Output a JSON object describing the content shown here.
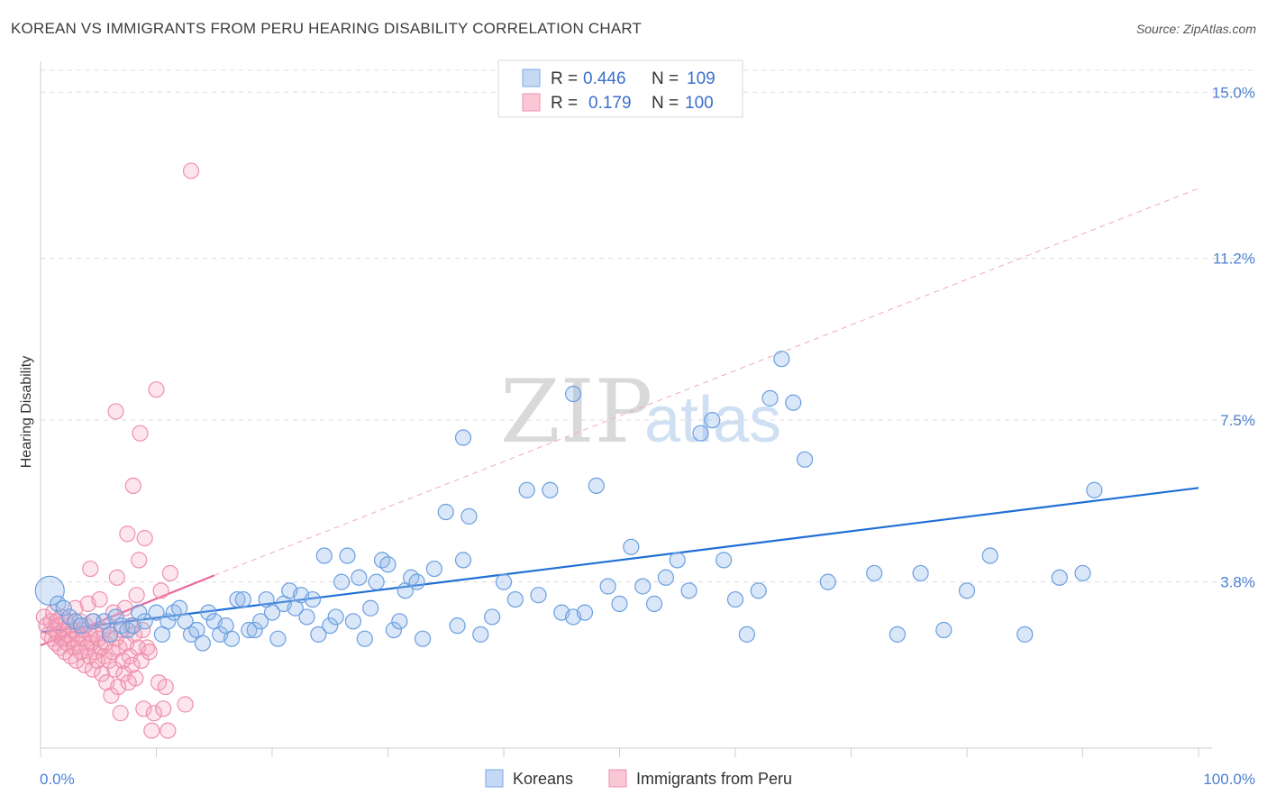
{
  "header": {
    "title": "KOREAN VS IMMIGRANTS FROM PERU HEARING DISABILITY CORRELATION CHART",
    "source": "Source: ZipAtlas.com"
  },
  "watermark": {
    "zip": "ZIP",
    "atlas": "atlas"
  },
  "colors": {
    "blue": "#6a9fe0",
    "blue_line": "#1f6fd6",
    "pink": "#f07ea0",
    "pink_line": "#e8679a",
    "axis_text": "#4a7fd4"
  },
  "legend": {
    "r_label": "R =",
    "n_label": "N =",
    "series": [
      {
        "name": "Koreans",
        "r": "0.446",
        "n": "109"
      },
      {
        "name": "Immigrants from Peru",
        "r": "0.179",
        "n": "100"
      }
    ]
  },
  "chart_data": {
    "type": "scatter",
    "title": "KOREAN VS IMMIGRANTS FROM PERU HEARING DISABILITY CORRELATION CHART",
    "xlabel": "",
    "ylabel": "Hearing Disability",
    "xlim": [
      0,
      100
    ],
    "ylim": [
      0,
      15.5
    ],
    "x_tick_labels": [
      "0.0%",
      "100.0%"
    ],
    "y_ticks": [
      3.8,
      7.5,
      11.2,
      15.0
    ],
    "y_tick_labels": [
      "3.8%",
      "7.5%",
      "11.2%",
      "15.0%"
    ],
    "series": [
      {
        "name": "Koreans",
        "trend": {
          "x0": 0,
          "y0": 2.65,
          "x1": 100,
          "y1": 5.95
        },
        "points": [
          [
            0.8,
            3.6
          ],
          [
            1.5,
            3.3
          ],
          [
            2.0,
            3.2
          ],
          [
            2.5,
            3.0
          ],
          [
            3.0,
            2.9
          ],
          [
            3.5,
            2.8
          ],
          [
            4.5,
            2.9
          ],
          [
            5.5,
            2.9
          ],
          [
            6.0,
            2.6
          ],
          [
            6.5,
            3.0
          ],
          [
            7.0,
            2.8
          ],
          [
            7.5,
            2.7
          ],
          [
            8.0,
            2.8
          ],
          [
            8.5,
            3.1
          ],
          [
            9.0,
            2.9
          ],
          [
            10.0,
            3.1
          ],
          [
            10.5,
            2.6
          ],
          [
            11.0,
            2.9
          ],
          [
            11.5,
            3.1
          ],
          [
            12.0,
            3.2
          ],
          [
            12.5,
            2.9
          ],
          [
            13.0,
            2.6
          ],
          [
            13.5,
            2.7
          ],
          [
            14.0,
            2.4
          ],
          [
            14.5,
            3.1
          ],
          [
            15.0,
            2.9
          ],
          [
            15.5,
            2.6
          ],
          [
            16.0,
            2.8
          ],
          [
            16.5,
            2.5
          ],
          [
            17.0,
            3.4
          ],
          [
            17.5,
            3.4
          ],
          [
            18.0,
            2.7
          ],
          [
            18.5,
            2.7
          ],
          [
            19.0,
            2.9
          ],
          [
            19.5,
            3.4
          ],
          [
            20.0,
            3.1
          ],
          [
            20.5,
            2.5
          ],
          [
            21.0,
            3.3
          ],
          [
            21.5,
            3.6
          ],
          [
            22.0,
            3.2
          ],
          [
            22.5,
            3.5
          ],
          [
            23.0,
            3.0
          ],
          [
            23.5,
            3.4
          ],
          [
            24.0,
            2.6
          ],
          [
            24.5,
            4.4
          ],
          [
            25.0,
            2.8
          ],
          [
            25.5,
            3.0
          ],
          [
            26.0,
            3.8
          ],
          [
            26.5,
            4.4
          ],
          [
            27.0,
            2.9
          ],
          [
            27.5,
            3.9
          ],
          [
            28.0,
            2.5
          ],
          [
            28.5,
            3.2
          ],
          [
            29.0,
            3.8
          ],
          [
            29.5,
            4.3
          ],
          [
            30.0,
            4.2
          ],
          [
            30.5,
            2.7
          ],
          [
            31.0,
            2.9
          ],
          [
            31.5,
            3.6
          ],
          [
            32.0,
            3.9
          ],
          [
            32.5,
            3.8
          ],
          [
            33.0,
            2.5
          ],
          [
            34.0,
            4.1
          ],
          [
            35.0,
            5.4
          ],
          [
            36.0,
            2.8
          ],
          [
            36.5,
            4.3
          ],
          [
            37.0,
            5.3
          ],
          [
            38.0,
            2.6
          ],
          [
            39.0,
            3.0
          ],
          [
            40.0,
            3.8
          ],
          [
            41.0,
            3.4
          ],
          [
            42.0,
            5.9
          ],
          [
            43.0,
            3.5
          ],
          [
            44.0,
            5.9
          ],
          [
            45.0,
            3.1
          ],
          [
            46.0,
            3.0
          ],
          [
            47.0,
            3.1
          ],
          [
            48.0,
            6.0
          ],
          [
            49.0,
            3.7
          ],
          [
            50.0,
            3.3
          ],
          [
            51.0,
            4.6
          ],
          [
            52.0,
            3.7
          ],
          [
            53.0,
            3.3
          ],
          [
            54.0,
            3.9
          ],
          [
            55.0,
            4.3
          ],
          [
            56.0,
            3.6
          ],
          [
            57.0,
            7.2
          ],
          [
            58.0,
            7.5
          ],
          [
            59.0,
            4.3
          ],
          [
            60.0,
            3.4
          ],
          [
            61.0,
            2.6
          ],
          [
            62.0,
            3.6
          ],
          [
            63.0,
            8.0
          ],
          [
            64.0,
            8.9
          ],
          [
            65.0,
            7.9
          ],
          [
            66.0,
            6.6
          ],
          [
            68.0,
            3.8
          ],
          [
            72.0,
            4.0
          ],
          [
            74.0,
            2.6
          ],
          [
            76.0,
            4.0
          ],
          [
            78.0,
            2.7
          ],
          [
            80.0,
            3.6
          ],
          [
            82.0,
            4.4
          ],
          [
            85.0,
            2.6
          ],
          [
            88.0,
            3.9
          ],
          [
            90.0,
            4.0
          ],
          [
            91.0,
            5.9
          ],
          [
            36.5,
            7.1
          ],
          [
            46.0,
            8.1
          ]
        ]
      },
      {
        "name": "Immigrants from Peru",
        "trend": {
          "x0": 0,
          "y0": 2.35,
          "x1": 15,
          "y1": 3.95
        },
        "trend_ext": {
          "x0": 15,
          "y0": 3.95,
          "x1": 100,
          "y1": 12.8
        },
        "points": [
          [
            0.3,
            3.0
          ],
          [
            0.5,
            2.8
          ],
          [
            0.7,
            2.6
          ],
          [
            0.9,
            2.9
          ],
          [
            1.0,
            2.5
          ],
          [
            1.1,
            3.1
          ],
          [
            1.2,
            2.7
          ],
          [
            1.3,
            2.4
          ],
          [
            1.4,
            2.9
          ],
          [
            1.5,
            2.6
          ],
          [
            1.6,
            2.8
          ],
          [
            1.7,
            2.3
          ],
          [
            1.8,
            3.0
          ],
          [
            1.9,
            2.5
          ],
          [
            2.0,
            2.7
          ],
          [
            2.1,
            2.2
          ],
          [
            2.2,
            2.9
          ],
          [
            2.3,
            2.4
          ],
          [
            2.4,
            2.6
          ],
          [
            2.5,
            2.8
          ],
          [
            2.6,
            2.1
          ],
          [
            2.7,
            2.5
          ],
          [
            2.8,
            2.7
          ],
          [
            2.9,
            2.3
          ],
          [
            3.0,
            3.2
          ],
          [
            3.1,
            2.0
          ],
          [
            3.2,
            2.6
          ],
          [
            3.3,
            2.4
          ],
          [
            3.4,
            2.9
          ],
          [
            3.5,
            2.2
          ],
          [
            3.6,
            2.7
          ],
          [
            3.7,
            2.5
          ],
          [
            3.8,
            1.9
          ],
          [
            3.9,
            2.8
          ],
          [
            4.0,
            2.3
          ],
          [
            4.1,
            3.3
          ],
          [
            4.2,
            2.1
          ],
          [
            4.3,
            2.6
          ],
          [
            4.4,
            2.4
          ],
          [
            4.5,
            1.8
          ],
          [
            4.6,
            2.9
          ],
          [
            4.7,
            2.2
          ],
          [
            4.8,
            2.6
          ],
          [
            4.9,
            2.0
          ],
          [
            5.0,
            2.5
          ],
          [
            5.1,
            3.4
          ],
          [
            5.2,
            2.3
          ],
          [
            5.3,
            1.7
          ],
          [
            5.4,
            2.7
          ],
          [
            5.5,
            2.1
          ],
          [
            5.6,
            2.4
          ],
          [
            5.7,
            1.5
          ],
          [
            5.8,
            2.8
          ],
          [
            5.9,
            2.0
          ],
          [
            6.0,
            2.6
          ],
          [
            6.1,
            1.2
          ],
          [
            6.2,
            2.2
          ],
          [
            6.3,
            3.1
          ],
          [
            6.4,
            1.8
          ],
          [
            6.5,
            2.5
          ],
          [
            6.6,
            3.9
          ],
          [
            6.7,
            1.4
          ],
          [
            6.8,
            2.3
          ],
          [
            6.9,
            0.8
          ],
          [
            7.0,
            2.7
          ],
          [
            7.1,
            2.0
          ],
          [
            7.2,
            1.7
          ],
          [
            7.3,
            3.2
          ],
          [
            7.4,
            2.4
          ],
          [
            7.5,
            4.9
          ],
          [
            7.6,
            1.5
          ],
          [
            7.7,
            2.1
          ],
          [
            7.8,
            2.8
          ],
          [
            7.9,
            1.9
          ],
          [
            8.0,
            6.0
          ],
          [
            8.1,
            2.6
          ],
          [
            8.2,
            1.6
          ],
          [
            8.3,
            3.5
          ],
          [
            8.4,
            2.3
          ],
          [
            8.5,
            4.3
          ],
          [
            8.6,
            7.2
          ],
          [
            8.7,
            2.0
          ],
          [
            8.8,
            2.7
          ],
          [
            8.9,
            0.9
          ],
          [
            9.0,
            4.8
          ],
          [
            9.2,
            2.3
          ],
          [
            9.4,
            2.2
          ],
          [
            9.6,
            0.4
          ],
          [
            9.8,
            0.8
          ],
          [
            10.0,
            8.2
          ],
          [
            10.2,
            1.5
          ],
          [
            10.4,
            3.6
          ],
          [
            10.6,
            0.9
          ],
          [
            10.8,
            1.4
          ],
          [
            11.0,
            0.4
          ],
          [
            11.2,
            4.0
          ],
          [
            12.5,
            1.0
          ],
          [
            13.0,
            13.2
          ],
          [
            4.3,
            4.1
          ],
          [
            6.5,
            7.7
          ]
        ]
      }
    ]
  }
}
